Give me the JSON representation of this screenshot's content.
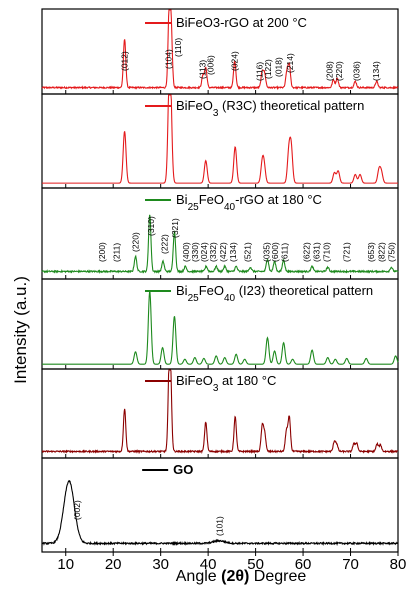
{
  "chart_data": {
    "type": "line",
    "xlabel_pre": "Angle ",
    "xlabel_paren": "(2θ)",
    "xlabel_post": " Degree",
    "ylabel": "Intensity (a.u.)",
    "xlim": [
      5,
      80
    ],
    "xticks": [
      10,
      20,
      30,
      40,
      50,
      60,
      70,
      80
    ],
    "xtick_labels": [
      "10",
      "20",
      "30",
      "40",
      "50",
      "60",
      "70",
      "80"
    ],
    "panels": [
      {
        "legend": "BiFeO3-rGO  at 200 °C",
        "color": "#e41a1c",
        "baseline": 0.04,
        "peaks": [
          {
            "x": 22.4,
            "h": 0.62,
            "w": 0.25
          },
          {
            "x": 31.8,
            "h": 0.95,
            "w": 0.25
          },
          {
            "x": 32.2,
            "h": 0.72,
            "w": 0.25
          },
          {
            "x": 38.9,
            "h": 0.15,
            "w": 0.25
          },
          {
            "x": 39.5,
            "h": 0.25,
            "w": 0.25
          },
          {
            "x": 45.6,
            "h": 0.34,
            "w": 0.25
          },
          {
            "x": 51.4,
            "h": 0.2,
            "w": 0.25
          },
          {
            "x": 51.9,
            "h": 0.17,
            "w": 0.25
          },
          {
            "x": 56.6,
            "h": 0.2,
            "w": 0.25
          },
          {
            "x": 57.1,
            "h": 0.28,
            "w": 0.25
          },
          {
            "x": 66.4,
            "h": 0.1,
            "w": 0.25
          },
          {
            "x": 67.2,
            "h": 0.12,
            "w": 0.25
          },
          {
            "x": 71.0,
            "h": 0.08,
            "w": 0.25
          },
          {
            "x": 75.5,
            "h": 0.08,
            "w": 0.25
          }
        ],
        "hkl": [
          {
            "x": 22.4,
            "label": "(012)"
          },
          {
            "x": 31.6,
            "label": "(104)"
          },
          {
            "x": 33.6,
            "label": "(110)"
          },
          {
            "x": 38.8,
            "label": "(113)"
          },
          {
            "x": 40.5,
            "label": "(006)"
          },
          {
            "x": 45.6,
            "label": "(024)"
          },
          {
            "x": 50.8,
            "label": "(116)"
          },
          {
            "x": 52.6,
            "label": "(122)"
          },
          {
            "x": 54.8,
            "label": "(018)"
          },
          {
            "x": 57.2,
            "label": "(214)"
          },
          {
            "x": 65.6,
            "label": "(208)"
          },
          {
            "x": 67.6,
            "label": "(220)"
          },
          {
            "x": 71.3,
            "label": "(036)"
          },
          {
            "x": 75.4,
            "label": "(134)"
          }
        ]
      },
      {
        "legend": "BiFeO",
        "legend_sub": "3",
        "legend_post": " (R3C) theoretical pattern",
        "color": "#e41a1c",
        "baseline": 0.02,
        "peaks": [
          {
            "x": 22.4,
            "h": 0.6,
            "w": 0.3
          },
          {
            "x": 31.8,
            "h": 0.92,
            "w": 0.3
          },
          {
            "x": 32.1,
            "h": 0.75,
            "w": 0.3
          },
          {
            "x": 39.5,
            "h": 0.26,
            "w": 0.3
          },
          {
            "x": 45.7,
            "h": 0.42,
            "w": 0.3
          },
          {
            "x": 51.4,
            "h": 0.22,
            "w": 0.3
          },
          {
            "x": 51.8,
            "h": 0.18,
            "w": 0.3
          },
          {
            "x": 57.0,
            "h": 0.35,
            "w": 0.3
          },
          {
            "x": 57.5,
            "h": 0.4,
            "w": 0.3
          },
          {
            "x": 66.6,
            "h": 0.12,
            "w": 0.3
          },
          {
            "x": 67.4,
            "h": 0.14,
            "w": 0.3
          },
          {
            "x": 71.0,
            "h": 0.1,
            "w": 0.3
          },
          {
            "x": 72.0,
            "h": 0.1,
            "w": 0.3
          },
          {
            "x": 76.0,
            "h": 0.15,
            "w": 0.3
          },
          {
            "x": 76.5,
            "h": 0.12,
            "w": 0.3
          }
        ],
        "hkl": []
      },
      {
        "legend": "Bi",
        "legend_sub": "25",
        "legend_post": "FeO",
        "legend_sub2": "40",
        "legend_post2": "-rGO  at 180 °C",
        "color": "#1e8a1e",
        "baseline": 0.05,
        "peaks": [
          {
            "x": 24.7,
            "h": 0.18,
            "w": 0.25
          },
          {
            "x": 27.7,
            "h": 0.68,
            "w": 0.25
          },
          {
            "x": 30.5,
            "h": 0.12,
            "w": 0.25
          },
          {
            "x": 32.9,
            "h": 0.48,
            "w": 0.25
          },
          {
            "x": 35.2,
            "h": 0.06,
            "w": 0.25
          },
          {
            "x": 39.6,
            "h": 0.06,
            "w": 0.25
          },
          {
            "x": 41.7,
            "h": 0.06,
            "w": 0.25
          },
          {
            "x": 43.5,
            "h": 0.06,
            "w": 0.25
          },
          {
            "x": 45.9,
            "h": 0.06,
            "w": 0.25
          },
          {
            "x": 48.9,
            "h": 0.05,
            "w": 0.25
          },
          {
            "x": 52.5,
            "h": 0.15,
            "w": 0.25
          },
          {
            "x": 54.0,
            "h": 0.12,
            "w": 0.25
          },
          {
            "x": 55.9,
            "h": 0.14,
            "w": 0.25
          },
          {
            "x": 61.9,
            "h": 0.06,
            "w": 0.25
          },
          {
            "x": 65.2,
            "h": 0.05,
            "w": 0.25
          },
          {
            "x": 78.6,
            "h": 0.05,
            "w": 0.25
          }
        ],
        "hkl": [
          {
            "x": 17.6,
            "label": "(200)"
          },
          {
            "x": 20.7,
            "label": "(211)"
          },
          {
            "x": 24.7,
            "label": "(220)"
          },
          {
            "x": 28.0,
            "label": "(310)"
          },
          {
            "x": 30.8,
            "label": "(222)"
          },
          {
            "x": 33.0,
            "label": "(321)"
          },
          {
            "x": 35.3,
            "label": "(400)"
          },
          {
            "x": 37.2,
            "label": "(330)"
          },
          {
            "x": 39.1,
            "label": "(024)"
          },
          {
            "x": 41.0,
            "label": "(332)"
          },
          {
            "x": 43.1,
            "label": "(422)"
          },
          {
            "x": 45.2,
            "label": "(134)"
          },
          {
            "x": 48.3,
            "label": "(521)"
          },
          {
            "x": 52.3,
            "label": "(035)"
          },
          {
            "x": 54.1,
            "label": "(600)"
          },
          {
            "x": 56.1,
            "label": "(611)"
          },
          {
            "x": 60.7,
            "label": "(622)"
          },
          {
            "x": 62.8,
            "label": "(631)"
          },
          {
            "x": 64.9,
            "label": "(710)"
          },
          {
            "x": 69.2,
            "label": "(721)"
          },
          {
            "x": 74.3,
            "label": "(653)"
          },
          {
            "x": 76.5,
            "label": "(822)"
          },
          {
            "x": 78.6,
            "label": "(750)"
          }
        ]
      },
      {
        "legend": "Bi",
        "legend_sub": "25",
        "legend_post": "FeO",
        "legend_sub2": "40",
        "legend_post2": " (I23) theoretical pattern",
        "color": "#1e8a1e",
        "baseline": 0.02,
        "peaks": [
          {
            "x": 24.7,
            "h": 0.15,
            "w": 0.3
          },
          {
            "x": 27.7,
            "h": 0.88,
            "w": 0.3
          },
          {
            "x": 30.4,
            "h": 0.2,
            "w": 0.3
          },
          {
            "x": 32.9,
            "h": 0.58,
            "w": 0.3
          },
          {
            "x": 35.1,
            "h": 0.06,
            "w": 0.3
          },
          {
            "x": 37.2,
            "h": 0.08,
            "w": 0.3
          },
          {
            "x": 39.1,
            "h": 0.07,
            "w": 0.3
          },
          {
            "x": 41.7,
            "h": 0.1,
            "w": 0.3
          },
          {
            "x": 43.5,
            "h": 0.08,
            "w": 0.3
          },
          {
            "x": 45.9,
            "h": 0.12,
            "w": 0.3
          },
          {
            "x": 47.7,
            "h": 0.06,
            "w": 0.3
          },
          {
            "x": 52.5,
            "h": 0.32,
            "w": 0.3
          },
          {
            "x": 54.0,
            "h": 0.16,
            "w": 0.3
          },
          {
            "x": 55.9,
            "h": 0.26,
            "w": 0.3
          },
          {
            "x": 57.8,
            "h": 0.06,
            "w": 0.3
          },
          {
            "x": 61.9,
            "h": 0.17,
            "w": 0.3
          },
          {
            "x": 65.2,
            "h": 0.08,
            "w": 0.3
          },
          {
            "x": 66.8,
            "h": 0.06,
            "w": 0.3
          },
          {
            "x": 69.2,
            "h": 0.07,
            "w": 0.3
          },
          {
            "x": 73.3,
            "h": 0.07,
            "w": 0.3
          },
          {
            "x": 79.5,
            "h": 0.1,
            "w": 0.3
          }
        ],
        "hkl": []
      },
      {
        "legend": "BiFeO",
        "legend_sub": "3",
        "legend_post": "  at  180 °C",
        "color": "#8b0000",
        "baseline": 0.04,
        "peaks": [
          {
            "x": 22.4,
            "h": 0.52,
            "w": 0.25
          },
          {
            "x": 31.8,
            "h": 0.9,
            "w": 0.25
          },
          {
            "x": 32.1,
            "h": 0.7,
            "w": 0.25
          },
          {
            "x": 39.5,
            "h": 0.36,
            "w": 0.25
          },
          {
            "x": 45.7,
            "h": 0.42,
            "w": 0.25
          },
          {
            "x": 51.4,
            "h": 0.3,
            "w": 0.25
          },
          {
            "x": 51.9,
            "h": 0.22,
            "w": 0.25
          },
          {
            "x": 56.5,
            "h": 0.25,
            "w": 0.25
          },
          {
            "x": 57.1,
            "h": 0.42,
            "w": 0.25
          },
          {
            "x": 66.6,
            "h": 0.12,
            "w": 0.25
          },
          {
            "x": 67.1,
            "h": 0.08,
            "w": 0.25
          },
          {
            "x": 70.7,
            "h": 0.09,
            "w": 0.25
          },
          {
            "x": 71.3,
            "h": 0.1,
            "w": 0.25
          },
          {
            "x": 75.6,
            "h": 0.09,
            "w": 0.25
          },
          {
            "x": 76.3,
            "h": 0.08,
            "w": 0.25
          }
        ],
        "hkl": []
      },
      {
        "legend": "GO",
        "legend_bold": true,
        "color": "#000000",
        "baseline": 0.06,
        "peaks": [
          {
            "x": 10.7,
            "h": 0.72,
            "w": 1.1
          },
          {
            "x": 42.3,
            "h": 0.03,
            "w": 1.2
          }
        ],
        "hkl": [
          {
            "x": 12.4,
            "label": "(002)"
          },
          {
            "x": 42.4,
            "label": "(101)"
          }
        ]
      }
    ]
  }
}
